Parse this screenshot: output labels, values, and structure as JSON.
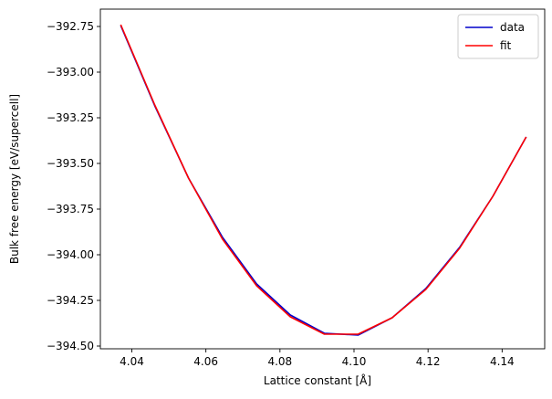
{
  "chart_data": {
    "type": "line",
    "title": "",
    "xlabel": "Lattice constant [Å]",
    "ylabel": "Bulk free energy [eV/supercell]",
    "xlim": [
      4.0315,
      4.1515
    ],
    "ylim": [
      -394.515,
      -392.655
    ],
    "xticks": [
      4.04,
      4.06,
      4.08,
      4.1,
      4.12,
      4.14
    ],
    "xtick_labels": [
      "4.04",
      "4.06",
      "4.08",
      "4.10",
      "4.12",
      "4.14"
    ],
    "yticks": [
      -392.75,
      -393.0,
      -393.25,
      -393.5,
      -393.75,
      -394.0,
      -394.25,
      -394.5
    ],
    "ytick_labels": [
      "−392.75",
      "−393.00",
      "−393.25",
      "−393.50",
      "−393.75",
      "−394.00",
      "−394.25",
      "−394.50"
    ],
    "grid": false,
    "legend_position": "top-right",
    "x": [
      4.037,
      4.0462,
      4.0553,
      4.0645,
      4.0737,
      4.0828,
      4.092,
      4.1011,
      4.1103,
      4.1194,
      4.1285,
      4.1375,
      4.1465
    ],
    "series": [
      {
        "name": "data",
        "color": "#0000cc",
        "values": [
          -392.745,
          -393.185,
          -393.58,
          -393.905,
          -394.16,
          -394.33,
          -394.43,
          -394.44,
          -394.345,
          -394.185,
          -393.96,
          -393.68,
          -393.355
        ]
      },
      {
        "name": "fit",
        "color": "#ff0000",
        "values": [
          -392.74,
          -393.18,
          -393.58,
          -393.915,
          -394.17,
          -394.34,
          -394.435,
          -394.435,
          -394.345,
          -394.19,
          -393.965,
          -393.68,
          -393.355
        ]
      }
    ]
  }
}
